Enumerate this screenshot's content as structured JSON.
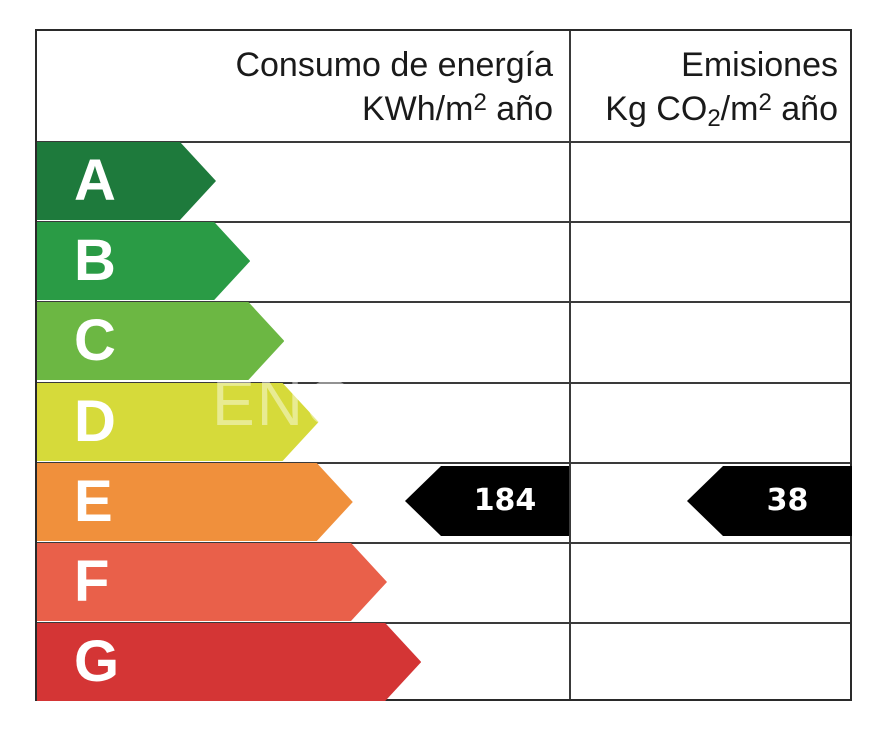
{
  "header": {
    "energy_title": "Consumo de energía",
    "energy_unit_prefix": "KWh/m",
    "energy_unit_sup": "2",
    "energy_unit_suffix": " año",
    "emissions_title": "Emisiones",
    "emissions_unit_prefix": "Kg CO",
    "emissions_unit_sub": "2",
    "emissions_unit_mid": "/m",
    "emissions_unit_sup": "2",
    "emissions_unit_suffix": " año"
  },
  "grades": [
    {
      "letter": "A",
      "color": "#1e7a3c"
    },
    {
      "letter": "B",
      "color": "#2a9b45"
    },
    {
      "letter": "C",
      "color": "#6cb743"
    },
    {
      "letter": "D",
      "color": "#d6da3a"
    },
    {
      "letter": "E",
      "color": "#f0903c"
    },
    {
      "letter": "F",
      "color": "#e9604a"
    },
    {
      "letter": "G",
      "color": "#d43535"
    }
  ],
  "ratings": {
    "energy": {
      "grade": "E",
      "value": "184"
    },
    "emissions": {
      "grade": "E",
      "value": "38"
    }
  },
  "tag_color": "#000000",
  "watermark_text": "ENG"
}
